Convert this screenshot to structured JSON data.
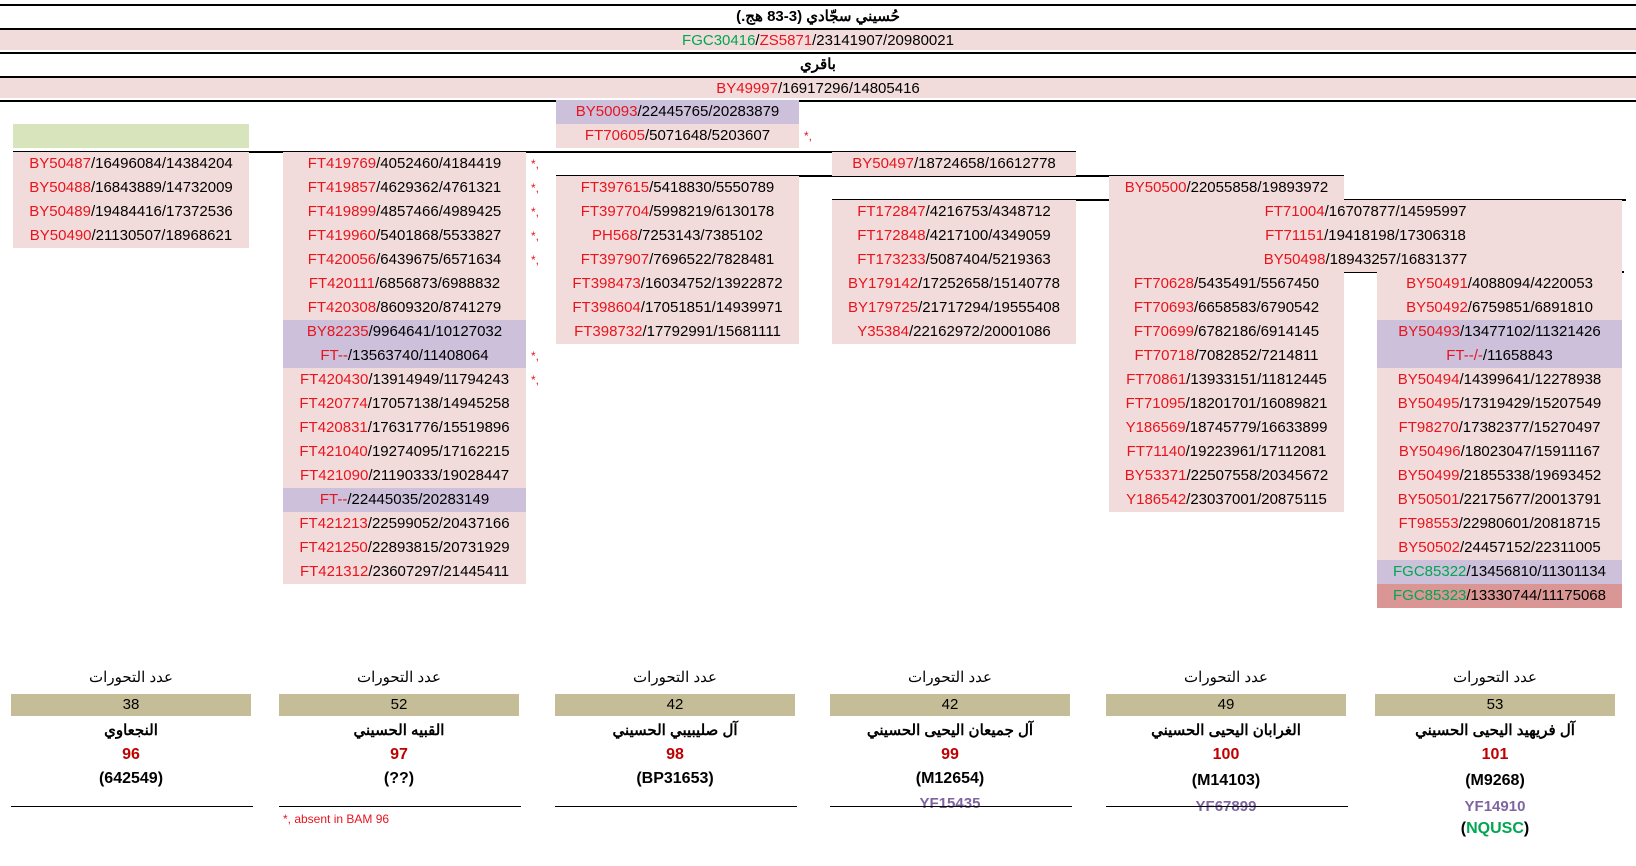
{
  "header": {
    "title": "حُسيني سجّادي (3-83 هج.)",
    "snp_row": [
      {
        "t": "FGC30416",
        "c": "grn"
      },
      {
        "t": "/",
        "c": "blk"
      },
      {
        "t": "ZS5871",
        "c": "red"
      },
      {
        "t": "/23141907/20980021",
        "c": "blk"
      }
    ],
    "title2": "باقري",
    "snp_row2": [
      {
        "t": "BY49997",
        "c": "red"
      },
      {
        "t": "/16917296/14805416",
        "c": "blk"
      }
    ]
  },
  "middle": {
    "row1": [
      {
        "t": "BY50093",
        "c": "red"
      },
      {
        "t": "/22445765/20283879",
        "c": "blk"
      }
    ],
    "row2": [
      {
        "t": "FT70605",
        "c": "red"
      },
      {
        "t": "/5071648/5203607",
        "c": "blk"
      }
    ],
    "row2_star": "*,",
    "by50497": [
      {
        "t": "BY50497",
        "c": "red"
      },
      {
        "t": "/18724658/16612778",
        "c": "blk"
      }
    ],
    "by50500": [
      {
        "t": "BY50500",
        "c": "red"
      },
      {
        "t": "/22055858/19893972",
        "c": "blk"
      }
    ]
  },
  "columns": {
    "c1": [
      {
        "id": "BY50487",
        "pos": "/16496084/14384204",
        "bg": "p"
      },
      {
        "id": "BY50488",
        "pos": "/16843889/14732009",
        "bg": "p"
      },
      {
        "id": "BY50489",
        "pos": "/19484416/17372536",
        "bg": "p"
      },
      {
        "id": "BY50490",
        "pos": "/21130507/18968621",
        "bg": "p"
      }
    ],
    "c2": [
      {
        "id": "FT419769",
        "pos": "/4052460/4184419",
        "bg": "p",
        "star": "*,"
      },
      {
        "id": "FT419857",
        "pos": "/4629362/4761321",
        "bg": "p",
        "star": "*,"
      },
      {
        "id": "FT419899",
        "pos": "/4857466/4989425",
        "bg": "p",
        "star": "*,"
      },
      {
        "id": "FT419960",
        "pos": "/5401868/5533827",
        "bg": "p",
        "star": "*,"
      },
      {
        "id": "FT420056",
        "pos": "/6439675/6571634",
        "bg": "p",
        "star": "*,"
      },
      {
        "id": "FT420111",
        "pos": "/6856873/6988832",
        "bg": "p"
      },
      {
        "id": "FT420308",
        "pos": "/8609320/8741279",
        "bg": "p"
      },
      {
        "id": "BY82235",
        "pos": "/9964641/10127032",
        "bg": "l"
      },
      {
        "id": "FT--",
        "pos": "/13563740/11408064",
        "bg": "l",
        "star": "*,"
      },
      {
        "id": "FT420430",
        "pos": "/13914949/11794243",
        "bg": "p",
        "star": "*,"
      },
      {
        "id": "FT420774",
        "pos": "/17057138/14945258",
        "bg": "p"
      },
      {
        "id": "FT420831",
        "pos": "/17631776/15519896",
        "bg": "p"
      },
      {
        "id": "FT421040",
        "pos": "/19274095/17162215",
        "bg": "p"
      },
      {
        "id": "FT421090",
        "pos": "/21190333/19028447",
        "bg": "p"
      },
      {
        "id": "FT--",
        "pos": "/22445035/20283149",
        "bg": "l"
      },
      {
        "id": "FT421213",
        "pos": "/22599052/20437166",
        "bg": "p"
      },
      {
        "id": "FT421250",
        "pos": "/22893815/20731929",
        "bg": "p"
      },
      {
        "id": "FT421312",
        "pos": "/23607297/21445411",
        "bg": "p"
      }
    ],
    "c3": [
      {
        "id": "FT397615",
        "pos": "/5418830/5550789",
        "bg": "p"
      },
      {
        "id": "FT397704",
        "pos": "/5998219/6130178",
        "bg": "p"
      },
      {
        "id": "PH568",
        "pos": "/7253143/7385102",
        "bg": "p"
      },
      {
        "id": "FT397907",
        "pos": "/7696522/7828481",
        "bg": "p"
      },
      {
        "id": "FT398473",
        "pos": "/16034752/13922872",
        "bg": "p"
      },
      {
        "id": "FT398604",
        "pos": "/17051851/14939971",
        "bg": "p"
      },
      {
        "id": "FT398732",
        "pos": "/17792991/15681111",
        "bg": "p"
      }
    ],
    "c4": [
      {
        "id": "FT172847",
        "pos": "/4216753/4348712",
        "bg": "p"
      },
      {
        "id": "FT172848",
        "pos": "/4217100/4349059",
        "bg": "p"
      },
      {
        "id": "FT173233",
        "pos": "/5087404/5219363",
        "bg": "p"
      },
      {
        "id": "BY179142",
        "pos": "/17252658/15140778",
        "bg": "p"
      },
      {
        "id": "BY179725",
        "pos": "/21717294/19555408",
        "bg": "p"
      },
      {
        "id": "Y35384",
        "pos": "/22162972/20001086",
        "bg": "p"
      }
    ],
    "c56_top": [
      {
        "id": "FT71004",
        "pos": "/16707877/14595997",
        "bg": "p"
      },
      {
        "id": "FT71151",
        "pos": "/19418198/17306318",
        "bg": "p"
      },
      {
        "id": "BY50498",
        "pos": "/18943257/16831377",
        "bg": "p"
      }
    ],
    "c5": [
      {
        "id": "FT70628",
        "pos": "/5435491/5567450",
        "bg": "p"
      },
      {
        "id": "FT70693",
        "pos": "/6658583/6790542",
        "bg": "p"
      },
      {
        "id": "FT70699",
        "pos": "/6782186/6914145",
        "bg": "p"
      },
      {
        "id": "FT70718",
        "pos": "/7082852/7214811",
        "bg": "p"
      },
      {
        "id": "FT70861",
        "pos": "/13933151/11812445",
        "bg": "p"
      },
      {
        "id": "FT71095",
        "pos": "/18201701/16089821",
        "bg": "p"
      },
      {
        "id": "Y186569",
        "pos": "/18745779/16633899",
        "bg": "p"
      },
      {
        "id": "FT71140",
        "pos": "/19223961/17112081",
        "bg": "p"
      },
      {
        "id": "BY53371",
        "pos": "/22507558/20345672",
        "bg": "p"
      },
      {
        "id": "Y186542",
        "pos": "/23037001/20875115",
        "bg": "p"
      }
    ],
    "c6": [
      {
        "id": "BY50491",
        "pos": "/4088094/4220053",
        "bg": "p"
      },
      {
        "id": "BY50492",
        "pos": "/6759851/6891810",
        "bg": "p"
      },
      {
        "id": "BY50493",
        "pos": "/13477102/11321426",
        "bg": "l"
      },
      {
        "id": "FT--/-",
        "pos": "/11658843",
        "bg": "l"
      },
      {
        "id": "BY50494",
        "pos": "/14399641/12278938",
        "bg": "p"
      },
      {
        "id": "BY50495",
        "pos": "/17319429/15207549",
        "bg": "p"
      },
      {
        "id": "FT98270",
        "pos": "/17382377/15270497",
        "bg": "p"
      },
      {
        "id": "BY50496",
        "pos": "/18023047/15911167",
        "bg": "p"
      },
      {
        "id": "BY50499",
        "pos": "/21855338/19693452",
        "bg": "p"
      },
      {
        "id": "BY50501",
        "pos": "/22175677/20013791",
        "bg": "p"
      },
      {
        "id": "FT98553",
        "pos": "/22980601/20818715",
        "bg": "p"
      },
      {
        "id": "BY50502",
        "pos": "/24457152/22311005",
        "bg": "p"
      },
      {
        "id": "FGC85322",
        "pos": "/13456810/11301134",
        "bg": "l",
        "idc": "grn"
      },
      {
        "id": "FGC85323",
        "pos": "/13330744/11175068",
        "bg": "d",
        "idc": "grn"
      }
    ]
  },
  "summaries": [
    {
      "label": "عدد التحورات",
      "count": "38",
      "name": "النجعاوي",
      "num": "96",
      "snp": "(642549)"
    },
    {
      "label": "عدد التحورات",
      "count": "52",
      "name": "القبيه الحسيني",
      "num": "97",
      "snp": "(??)"
    },
    {
      "label": "عدد التحورات",
      "count": "42",
      "name": "آل صليبيبي الحسيني",
      "num": "98",
      "snp": "(BP31653)"
    },
    {
      "label": "عدد التحورات",
      "count": "42",
      "name": "آل جميعان اليحيى الحسيني",
      "num": "99",
      "snp": "(M12654)",
      "yf": "YF15435"
    },
    {
      "label": "عدد التحورات",
      "count": "49",
      "name": "الغرابان اليحيى الحسيني",
      "num": "100",
      "snp": "(M14103)",
      "yf": "YF67899"
    },
    {
      "label": "عدد التحورات",
      "count": "53",
      "name": "آل فريهيد اليحيى الحسيني",
      "num": "101",
      "snp": "(M9268)",
      "yf": "YF14910",
      "extra": "NQUSC",
      "extra_open": "(",
      "extra_close": ")"
    }
  ],
  "footnote": "*, absent in BAM 96",
  "colors": {
    "pink": "#f2dcdb",
    "lavender": "#ccc0da",
    "green_box": "#d8e4bc",
    "count_bg": "#c4bd97",
    "red_text": "#e8141e",
    "green_text": "#00a651"
  }
}
